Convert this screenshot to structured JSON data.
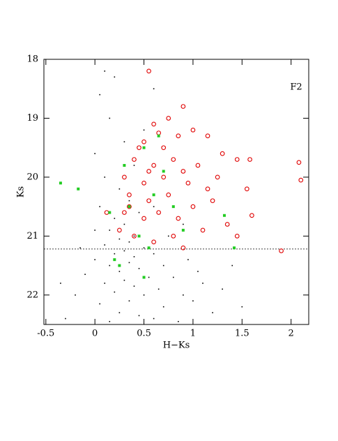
{
  "chart_data": {
    "type": "scatter",
    "annotation": "F2",
    "x_label": "H−Ks",
    "y_label": "Ks",
    "xlim": [
      -0.52,
      2.18
    ],
    "ylim": [
      18,
      22.5
    ],
    "y_inverted": true,
    "xticks": [
      -0.5,
      0,
      0.5,
      1,
      1.5,
      2
    ],
    "yticks": [
      18,
      19,
      20,
      21,
      22
    ],
    "limit_line": 21.22,
    "series": [
      {
        "color": "#000000",
        "marker": "dot",
        "x": [
          0.1,
          0.2,
          0.05,
          0.15,
          0.3,
          0.0,
          0.4,
          0.1,
          0.25,
          0.35,
          0.05,
          0.45,
          0.2,
          0.3,
          0.15,
          0.4,
          0.25,
          0.35,
          0.1,
          0.5,
          0.3,
          0.2,
          0.4,
          0.6,
          0.0,
          0.35,
          0.15,
          0.45,
          0.7,
          0.25,
          -0.1,
          0.55,
          0.3,
          0.8,
          0.1,
          0.4,
          0.65,
          0.2,
          -0.2,
          0.5,
          0.9,
          0.35,
          0.05,
          0.7,
          1.0,
          0.25,
          0.45,
          -0.3,
          0.6,
          1.2,
          0.15,
          0.85,
          1.1,
          1.3,
          0.95,
          1.5,
          -0.15,
          0.0,
          0.6,
          0.75,
          1.05,
          0.5,
          0.6,
          1.4,
          -0.35,
          0.9
        ],
        "values": [
          18.2,
          18.3,
          18.6,
          19.0,
          19.4,
          19.6,
          19.8,
          20.0,
          20.2,
          20.4,
          20.5,
          20.6,
          20.7,
          20.8,
          20.9,
          21.0,
          21.05,
          21.1,
          21.15,
          21.2,
          21.25,
          21.3,
          21.35,
          21.3,
          21.4,
          21.45,
          21.5,
          21.55,
          21.5,
          21.6,
          21.65,
          21.7,
          21.75,
          21.7,
          21.8,
          21.85,
          21.9,
          21.95,
          22.0,
          22.0,
          22.0,
          22.1,
          22.15,
          22.2,
          22.1,
          22.3,
          22.35,
          22.4,
          22.4,
          22.3,
          22.45,
          22.45,
          21.8,
          21.9,
          21.4,
          22.2,
          21.2,
          20.9,
          20.5,
          21.0,
          21.6,
          19.2,
          18.5,
          21.5,
          21.8,
          20.8
        ]
      },
      {
        "color": "#e00000",
        "marker": "circle",
        "x": [
          0.55,
          0.6,
          0.75,
          0.9,
          0.5,
          0.7,
          0.85,
          1.0,
          1.15,
          0.4,
          0.6,
          0.8,
          1.05,
          1.3,
          0.3,
          0.5,
          0.7,
          0.95,
          1.25,
          1.45,
          0.35,
          0.55,
          0.75,
          1.0,
          1.2,
          1.58,
          1.55,
          0.3,
          0.5,
          0.65,
          0.85,
          1.1,
          1.35,
          0.25,
          0.4,
          0.6,
          0.8,
          1.45,
          0.12,
          0.9,
          1.9,
          2.08,
          2.1,
          1.6,
          0.45,
          0.65,
          0.35,
          0.55,
          0.9,
          1.15
        ],
        "values": [
          18.2,
          19.1,
          19.0,
          18.8,
          19.4,
          19.5,
          19.3,
          19.2,
          19.3,
          19.7,
          19.8,
          19.7,
          19.8,
          19.6,
          20.0,
          20.1,
          20.0,
          20.1,
          20.0,
          19.7,
          20.3,
          20.4,
          20.3,
          20.5,
          20.4,
          19.7,
          20.2,
          20.6,
          20.7,
          20.6,
          20.7,
          20.9,
          20.8,
          20.9,
          21.0,
          21.1,
          21.0,
          21.0,
          20.6,
          21.2,
          21.25,
          19.75,
          20.05,
          20.65,
          19.5,
          19.25,
          20.5,
          19.9,
          19.9,
          20.2
        ]
      },
      {
        "color": "#22cc22",
        "marker": "square",
        "x": [
          -0.35,
          -0.17,
          0.15,
          0.2,
          0.35,
          0.5,
          0.6,
          0.45,
          0.7,
          0.55,
          0.9,
          1.32,
          1.42,
          0.3,
          0.5,
          0.8,
          0.25,
          0.65
        ],
        "values": [
          20.1,
          20.2,
          20.6,
          21.4,
          20.5,
          19.5,
          20.3,
          21.0,
          19.9,
          21.2,
          20.9,
          20.65,
          21.2,
          19.8,
          21.7,
          20.5,
          21.5,
          19.3
        ]
      }
    ]
  }
}
